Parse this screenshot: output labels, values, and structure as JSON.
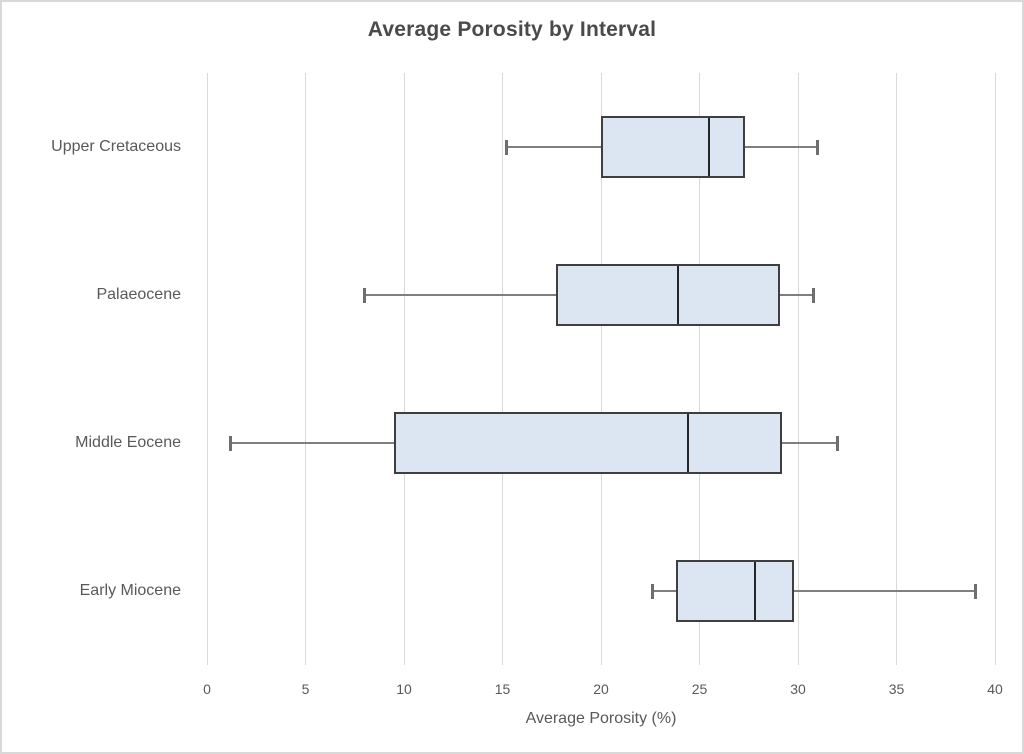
{
  "chart_data": {
    "type": "boxplot",
    "orientation": "horizontal",
    "title": "Average Porosity by Interval",
    "xlabel": "Average Porosity (%)",
    "ylabel": "",
    "xlim": [
      0,
      40
    ],
    "xticks": [
      0,
      5,
      10,
      15,
      20,
      25,
      30,
      35,
      40
    ],
    "grid": "vertical-only",
    "legend": "none",
    "categories": [
      "Upper Cretaceous",
      "Palaeocene",
      "Middle Eocene",
      "Early Miocene"
    ],
    "series": [
      {
        "name": "Upper Cretaceous",
        "min": 15.2,
        "q1": 20.0,
        "median": 25.5,
        "q3": 27.3,
        "max": 31.0
      },
      {
        "name": "Palaeocene",
        "min": 8.0,
        "q1": 17.7,
        "median": 23.9,
        "q3": 29.1,
        "max": 30.8
      },
      {
        "name": "Middle Eocene",
        "min": 1.2,
        "q1": 9.5,
        "median": 24.4,
        "q3": 29.2,
        "max": 32.0
      },
      {
        "name": "Early Miocene",
        "min": 22.6,
        "q1": 23.8,
        "median": 27.8,
        "q3": 29.8,
        "max": 39.0
      }
    ],
    "colors": {
      "box_fill": "#dce6f2",
      "box_border": "#3f3f3f",
      "median_line": "#262626",
      "whisker": "#7f7f7f",
      "gridline": "#d9d9d9",
      "axis_text": "#595959",
      "title_text": "#4a4a4a",
      "canvas_border": "#d9d9d9"
    }
  }
}
